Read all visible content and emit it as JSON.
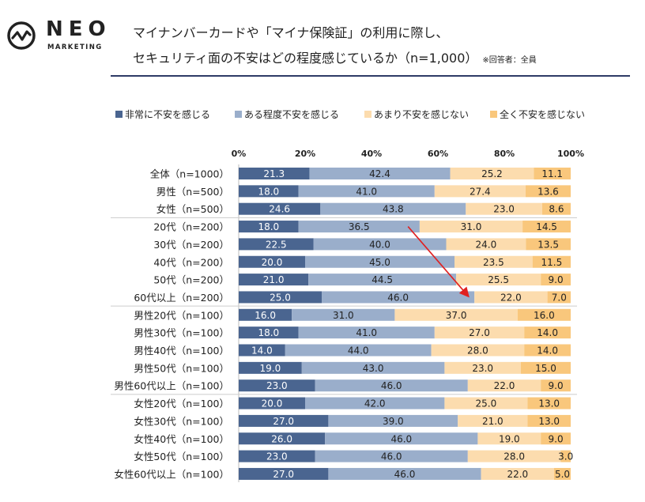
{
  "brand": {
    "name": "NEO",
    "sub": "MARKETING"
  },
  "header": {
    "title_line1": "マイナンバーカードや「マイナ保険証」の利用に際し、",
    "title_line2": "セキュリティ面の不安はどの程度感じているか（n=1,000）",
    "note": "※回答者：全員"
  },
  "chart_data": {
    "type": "bar",
    "orientation": "horizontal-stacked-100",
    "xlim": [
      0,
      100
    ],
    "xticks": [
      "0%",
      "20%",
      "40%",
      "60%",
      "80%",
      "100%"
    ],
    "categories": [
      "全体（n=1000）",
      "男性（n=500）",
      "女性（n=500）",
      "20代（n=200）",
      "30代（n=200）",
      "40代（n=200）",
      "50代（n=200）",
      "60代以上（n=200）",
      "男性20代（n=100）",
      "男性30代（n=100）",
      "男性40代（n=100）",
      "男性50代（n=100）",
      "男性60代以上（n=100）",
      "女性20代（n=100）",
      "女性30代（n=100）",
      "女性40代（n=100）",
      "女性50代（n=100）",
      "女性60代以上（n=100）"
    ],
    "series": [
      {
        "name": "非常に不安を感じる",
        "color": "#4a6590",
        "label_color": "#ffffff",
        "values": [
          21.3,
          18.0,
          24.6,
          18.0,
          22.5,
          20.0,
          21.0,
          25.0,
          16.0,
          18.0,
          14.0,
          19.0,
          23.0,
          20.0,
          27.0,
          26.0,
          23.0,
          27.0
        ]
      },
      {
        "name": "ある程度不安を感じる",
        "color": "#9aaecb",
        "label_color": "#222222",
        "values": [
          42.4,
          41.0,
          43.8,
          36.5,
          40.0,
          45.0,
          44.5,
          46.0,
          31.0,
          41.0,
          44.0,
          43.0,
          46.0,
          42.0,
          39.0,
          46.0,
          46.0,
          46.0
        ]
      },
      {
        "name": "あまり不安を感じない",
        "color": "#fcdcae",
        "label_color": "#222222",
        "values": [
          25.2,
          27.4,
          23.0,
          31.0,
          24.0,
          23.5,
          25.5,
          22.0,
          37.0,
          27.0,
          28.0,
          23.0,
          22.0,
          25.0,
          21.0,
          19.0,
          28.0,
          22.0
        ]
      },
      {
        "name": "全く不安を感じない",
        "color": "#f9c77c",
        "label_color": "#222222",
        "values": [
          11.1,
          13.6,
          8.6,
          14.5,
          13.5,
          11.5,
          9.0,
          7.0,
          16.0,
          14.0,
          14.0,
          15.0,
          9.0,
          13.0,
          13.0,
          9.0,
          3.0,
          5.0
        ]
      }
    ],
    "group_separators_after": [
      2,
      7,
      12
    ],
    "annotation": {
      "type": "arrow",
      "color": "#e02020",
      "from": {
        "row": 3,
        "value": 51
      },
      "to": {
        "row": 7,
        "value": 69
      }
    }
  }
}
